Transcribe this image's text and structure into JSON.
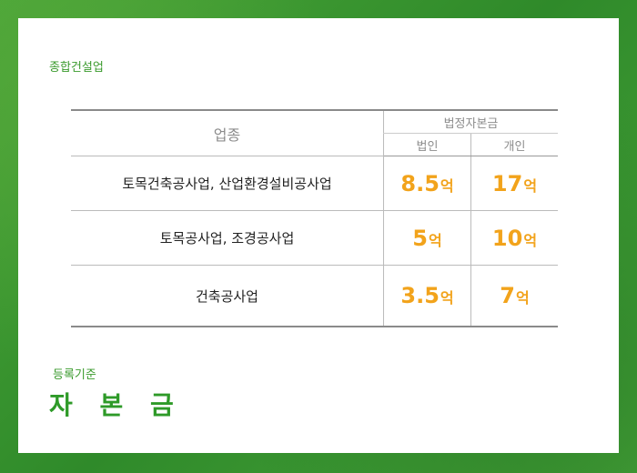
{
  "category": "종합건설업",
  "table": {
    "header_type": "업종",
    "header_capital": "법정자본금",
    "header_corp": "법인",
    "header_indiv": "개인",
    "rows": [
      {
        "type": "토목건축공사업, 산업환경설비공사업",
        "corp": "8.5",
        "indiv": "17",
        "unit": "억"
      },
      {
        "type": "토목공사업, 조경공사업",
        "corp": "5",
        "indiv": "10",
        "unit": "억"
      },
      {
        "type": "건축공사업",
        "corp": "3.5",
        "indiv": "7",
        "unit": "억"
      }
    ]
  },
  "basis_label": "등록기준",
  "title": "자 본 금",
  "colors": {
    "accent_green": "#2e9a28",
    "amount_orange": "#f2a31b"
  }
}
